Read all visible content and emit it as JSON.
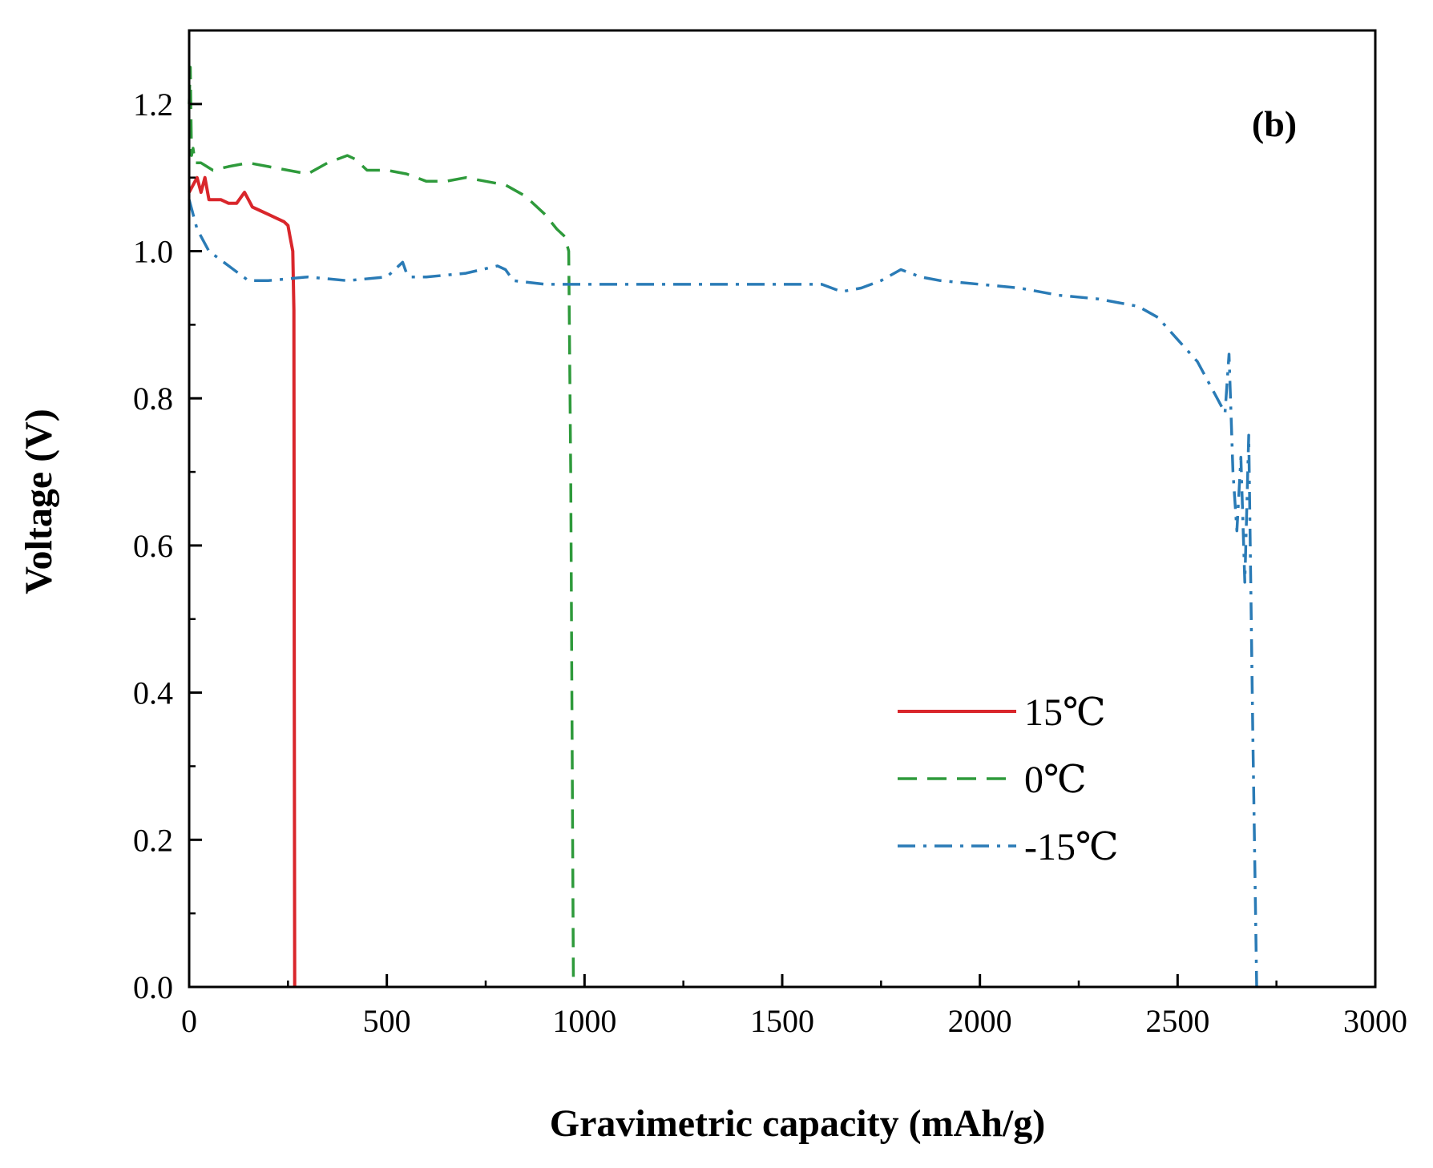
{
  "chart_data": {
    "type": "line",
    "panel_label": "(b)",
    "xlabel": "Gravimetric capacity (mAh/g)",
    "ylabel": "Voltage (V)",
    "xlim": [
      0,
      3000
    ],
    "ylim": [
      0.0,
      1.3
    ],
    "xticks": [
      0,
      500,
      1000,
      1500,
      2000,
      2500,
      3000
    ],
    "xtick_labels": [
      "0",
      "500",
      "1000",
      "1500",
      "2000",
      "2500",
      "3000"
    ],
    "yticks": [
      0.0,
      0.2,
      0.4,
      0.6,
      0.8,
      1.0,
      1.2
    ],
    "ytick_labels": [
      "0.0",
      "0.2",
      "0.4",
      "0.6",
      "0.8",
      "1.0",
      "1.2"
    ],
    "grid": false,
    "legend_position": "bottom-right",
    "series": [
      {
        "name": "15℃",
        "color": "#d9262b",
        "line_style": "solid",
        "x": [
          0,
          10,
          20,
          30,
          40,
          50,
          60,
          80,
          100,
          120,
          140,
          150,
          160,
          180,
          200,
          220,
          240,
          250,
          255,
          262,
          265,
          266,
          267
        ],
        "y": [
          1.08,
          1.09,
          1.1,
          1.08,
          1.1,
          1.07,
          1.07,
          1.07,
          1.065,
          1.065,
          1.08,
          1.07,
          1.06,
          1.055,
          1.05,
          1.045,
          1.04,
          1.035,
          1.02,
          1.0,
          0.92,
          0.4,
          0.0
        ]
      },
      {
        "name": "0℃",
        "color": "#2e9a3b",
        "line_style": "dashed",
        "x": [
          0,
          3,
          6,
          10,
          15,
          30,
          60,
          100,
          150,
          200,
          250,
          300,
          350,
          400,
          420,
          450,
          500,
          550,
          600,
          650,
          700,
          750,
          800,
          850,
          900,
          930,
          950,
          960,
          965,
          970,
          972
        ],
        "y": [
          1.2,
          1.25,
          1.13,
          1.14,
          1.12,
          1.12,
          1.11,
          1.115,
          1.12,
          1.115,
          1.11,
          1.105,
          1.12,
          1.13,
          1.125,
          1.11,
          1.11,
          1.105,
          1.095,
          1.095,
          1.1,
          1.095,
          1.09,
          1.075,
          1.05,
          1.03,
          1.02,
          1.0,
          0.7,
          0.2,
          0.0
        ]
      },
      {
        "name": "-15℃",
        "color": "#2a7bb6",
        "line_style": "dashdot",
        "x": [
          0,
          20,
          50,
          100,
          150,
          200,
          300,
          400,
          500,
          540,
          550,
          560,
          600,
          700,
          780,
          800,
          820,
          900,
          1000,
          1200,
          1400,
          1600,
          1650,
          1700,
          1750,
          1800,
          1850,
          1900,
          2000,
          2100,
          2200,
          2300,
          2400,
          2450,
          2500,
          2550,
          2600,
          2620,
          2630,
          2640,
          2650,
          2660,
          2670,
          2680,
          2690,
          2700
        ],
        "y": [
          1.07,
          1.03,
          1.0,
          0.98,
          0.96,
          0.96,
          0.965,
          0.96,
          0.965,
          0.985,
          0.97,
          0.965,
          0.965,
          0.97,
          0.98,
          0.975,
          0.96,
          0.955,
          0.955,
          0.955,
          0.955,
          0.955,
          0.945,
          0.95,
          0.96,
          0.975,
          0.965,
          0.96,
          0.955,
          0.95,
          0.94,
          0.935,
          0.925,
          0.91,
          0.88,
          0.85,
          0.8,
          0.78,
          0.86,
          0.7,
          0.62,
          0.72,
          0.55,
          0.75,
          0.35,
          0.0
        ]
      }
    ]
  }
}
